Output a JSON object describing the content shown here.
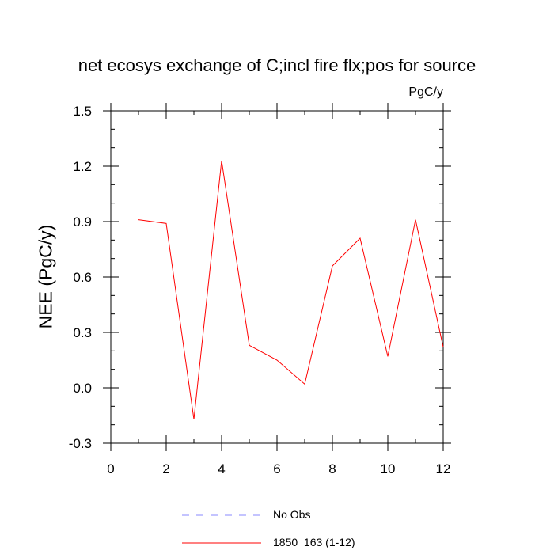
{
  "chart_data": {
    "type": "line",
    "title": "net ecosys exchange of C;incl fire flx;pos for source",
    "units_label": "PgC/y",
    "xlabel": "",
    "ylabel": "NEE  (PgC/y)",
    "xlim": [
      0,
      12
    ],
    "ylim": [
      -0.3,
      1.5
    ],
    "x_ticks": [
      0,
      2,
      4,
      6,
      8,
      10,
      12
    ],
    "x_tick_labels": [
      "0",
      "2",
      "4",
      "6",
      "8",
      "10",
      "12"
    ],
    "y_ticks": [
      -0.3,
      0.0,
      0.3,
      0.6,
      0.9,
      1.2,
      1.5
    ],
    "y_tick_labels": [
      "-0.3",
      "0.0",
      "0.3",
      "0.6",
      "0.9",
      "1.2",
      "1.5"
    ],
    "grid": false,
    "legend_position": "bottom",
    "series": [
      {
        "name": "1850_163 (1-12)",
        "color": "#ff0000",
        "x": [
          1,
          2,
          3,
          4,
          5,
          6,
          7,
          8,
          9,
          10,
          11,
          12
        ],
        "y": [
          0.91,
          0.89,
          -0.17,
          1.23,
          0.23,
          0.15,
          0.02,
          0.66,
          0.81,
          0.17,
          0.91,
          0.22
        ]
      }
    ],
    "legend": [
      {
        "label": "No Obs",
        "color": "#8888ff",
        "style": "dashed"
      },
      {
        "label": "1850_163 (1-12)",
        "color": "#ff0000",
        "style": "solid"
      }
    ]
  }
}
